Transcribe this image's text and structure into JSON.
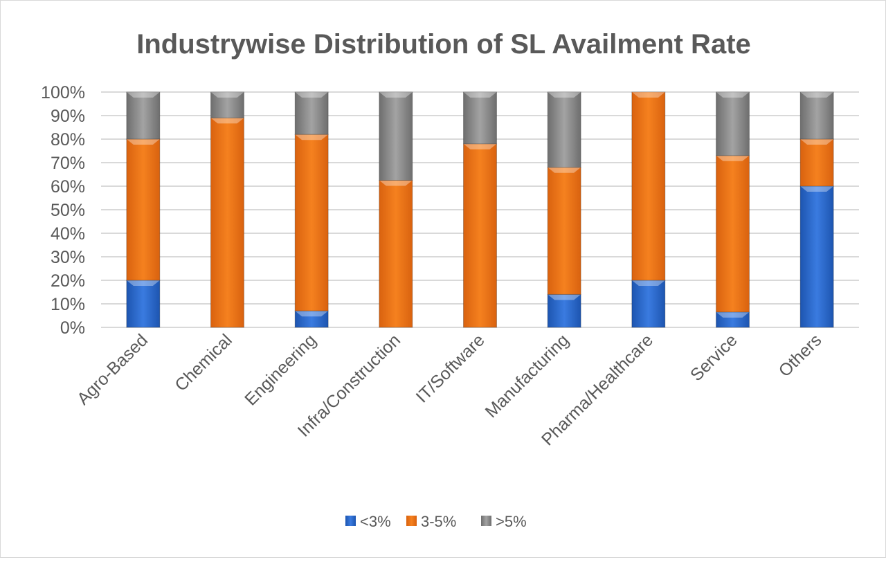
{
  "chart_data": {
    "type": "bar",
    "stacked": true,
    "percent": true,
    "title": "Industrywise Distribution of SL Availment Rate",
    "xlabel": "",
    "ylabel": "",
    "ylim": [
      0,
      100
    ],
    "yticks": [
      "0%",
      "10%",
      "20%",
      "30%",
      "40%",
      "50%",
      "60%",
      "70%",
      "80%",
      "90%",
      "100%"
    ],
    "grid": true,
    "legend_position": "bottom",
    "categories": [
      "Agro-Based",
      "Chemical",
      "Engineering",
      "Infra/Construction",
      "IT/Software",
      "Manufacturing",
      "Pharma/Healthcare",
      "Service",
      "Others"
    ],
    "series": [
      {
        "name": "<3%",
        "color": "#2e6fd6",
        "values": [
          20,
          0,
          7,
          0,
          0,
          14,
          20,
          6.5,
          60
        ]
      },
      {
        "name": "3-5%",
        "color": "#f07a1a",
        "values": [
          60,
          89,
          75,
          62.5,
          78,
          54,
          80,
          66.5,
          20
        ]
      },
      {
        "name": ">5%",
        "color": "#8c8c8c",
        "values": [
          20,
          11,
          18,
          37.5,
          22,
          32,
          0,
          27,
          20
        ]
      }
    ]
  }
}
